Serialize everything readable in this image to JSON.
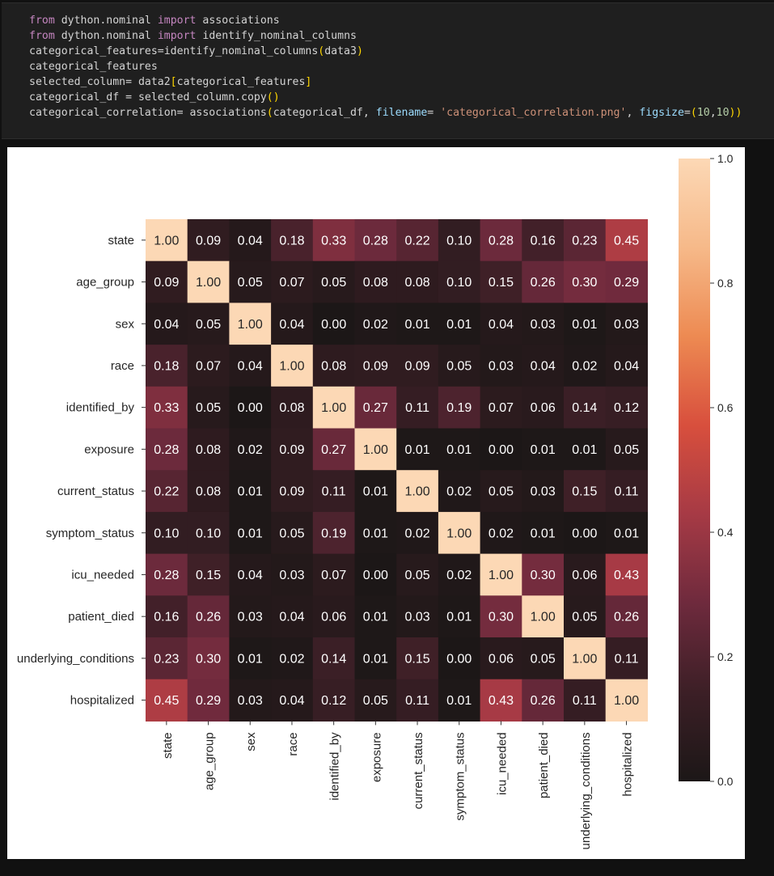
{
  "code_cell": {
    "lines": [
      [
        {
          "t": "from",
          "c": "kw"
        },
        {
          "t": " dython.nominal "
        },
        {
          "t": "import",
          "c": "kw"
        },
        {
          "t": " associations"
        }
      ],
      [
        {
          "t": "from",
          "c": "kw"
        },
        {
          "t": " dython.nominal "
        },
        {
          "t": "import",
          "c": "kw"
        },
        {
          "t": " identify_nominal_columns"
        }
      ],
      [
        {
          "t": "categorical_features=identify_nominal_columns"
        },
        {
          "t": "(",
          "c": "pa"
        },
        {
          "t": "data3"
        },
        {
          "t": ")",
          "c": "pa"
        }
      ],
      [
        {
          "t": "categorical_features"
        }
      ],
      [
        {
          "t": "selected_column= data2"
        },
        {
          "t": "[",
          "c": "pa"
        },
        {
          "t": "categorical_features"
        },
        {
          "t": "]",
          "c": "pa"
        }
      ],
      [
        {
          "t": "categorical_df = selected_column.copy"
        },
        {
          "t": "()",
          "c": "pa"
        }
      ],
      [
        {
          "t": "categorical_correlation= associations"
        },
        {
          "t": "(",
          "c": "pa"
        },
        {
          "t": "categorical_df, "
        },
        {
          "t": "filename",
          "c": "ar"
        },
        {
          "t": "= "
        },
        {
          "t": "'categorical_correlation.png'",
          "c": "st"
        },
        {
          "t": ", "
        },
        {
          "t": "figsize",
          "c": "ar"
        },
        {
          "t": "="
        },
        {
          "t": "(",
          "c": "pa"
        },
        {
          "t": "10",
          "c": "nu"
        },
        {
          "t": ","
        },
        {
          "t": "10",
          "c": "nu"
        },
        {
          "t": ")",
          "c": "pa"
        },
        {
          "t": ")",
          "c": "pa"
        }
      ]
    ]
  },
  "chart_data": {
    "type": "heatmap",
    "rows": [
      "state",
      "age_group",
      "sex",
      "race",
      "identified_by",
      "exposure",
      "current_status",
      "symptom_status",
      "icu_needed",
      "patient_died",
      "underlying_conditions",
      "hospitalized"
    ],
    "columns": [
      "state",
      "age_group",
      "sex",
      "race",
      "identified_by",
      "exposure",
      "current_status",
      "symptom_status",
      "icu_needed",
      "patient_died",
      "underlying_conditions",
      "hospitalized"
    ],
    "values": [
      [
        1.0,
        0.09,
        0.04,
        0.18,
        0.33,
        0.28,
        0.22,
        0.1,
        0.28,
        0.16,
        0.23,
        0.45
      ],
      [
        0.09,
        1.0,
        0.05,
        0.07,
        0.05,
        0.08,
        0.08,
        0.1,
        0.15,
        0.26,
        0.3,
        0.29
      ],
      [
        0.04,
        0.05,
        1.0,
        0.04,
        0.0,
        0.02,
        0.01,
        0.01,
        0.04,
        0.03,
        0.01,
        0.03
      ],
      [
        0.18,
        0.07,
        0.04,
        1.0,
        0.08,
        0.09,
        0.09,
        0.05,
        0.03,
        0.04,
        0.02,
        0.04
      ],
      [
        0.33,
        0.05,
        0.0,
        0.08,
        1.0,
        0.27,
        0.11,
        0.19,
        0.07,
        0.06,
        0.14,
        0.12
      ],
      [
        0.28,
        0.08,
        0.02,
        0.09,
        0.27,
        1.0,
        0.01,
        0.01,
        0.0,
        0.01,
        0.01,
        0.05
      ],
      [
        0.22,
        0.08,
        0.01,
        0.09,
        0.11,
        0.01,
        1.0,
        0.02,
        0.05,
        0.03,
        0.15,
        0.11
      ],
      [
        0.1,
        0.1,
        0.01,
        0.05,
        0.19,
        0.01,
        0.02,
        1.0,
        0.02,
        0.01,
        0.0,
        0.01
      ],
      [
        0.28,
        0.15,
        0.04,
        0.03,
        0.07,
        0.0,
        0.05,
        0.02,
        1.0,
        0.3,
        0.06,
        0.43
      ],
      [
        0.16,
        0.26,
        0.03,
        0.04,
        0.06,
        0.01,
        0.03,
        0.01,
        0.3,
        1.0,
        0.05,
        0.26
      ],
      [
        0.23,
        0.3,
        0.01,
        0.02,
        0.14,
        0.01,
        0.15,
        0.0,
        0.06,
        0.05,
        1.0,
        0.11
      ],
      [
        0.45,
        0.29,
        0.03,
        0.04,
        0.12,
        0.05,
        0.11,
        0.01,
        0.43,
        0.26,
        0.11,
        1.0
      ]
    ],
    "vmin": 0.0,
    "vmax": 1.0,
    "colorbar_ticks": [
      "0.0",
      "0.2",
      "0.4",
      "0.6",
      "0.8",
      "1.0"
    ],
    "colormap": [
      "#1c1717",
      "#3c1f26",
      "#6e2a3d",
      "#a63a45",
      "#d84f3d",
      "#ed8a52",
      "#f6b989",
      "#fcd8b5"
    ]
  }
}
